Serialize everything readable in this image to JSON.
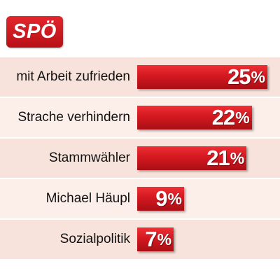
{
  "logo": {
    "text": "SPÖ"
  },
  "colors": {
    "bar": "#d41820",
    "row_bg": "#f8e3dc",
    "logo": "#e2262d"
  },
  "chart_data": {
    "type": "bar",
    "orientation": "horizontal",
    "title": "",
    "categories": [
      "mit Arbeit zufrieden",
      "Strache verhindern",
      "Stammwähler",
      "Michael Häupl",
      "Sozialpolitik"
    ],
    "values": [
      25,
      22,
      21,
      9,
      7
    ],
    "value_labels": [
      "25",
      "22",
      "21",
      "9",
      "7"
    ],
    "unit": "%",
    "xlim": [
      0,
      25
    ],
    "grid": false,
    "legend": "none"
  }
}
